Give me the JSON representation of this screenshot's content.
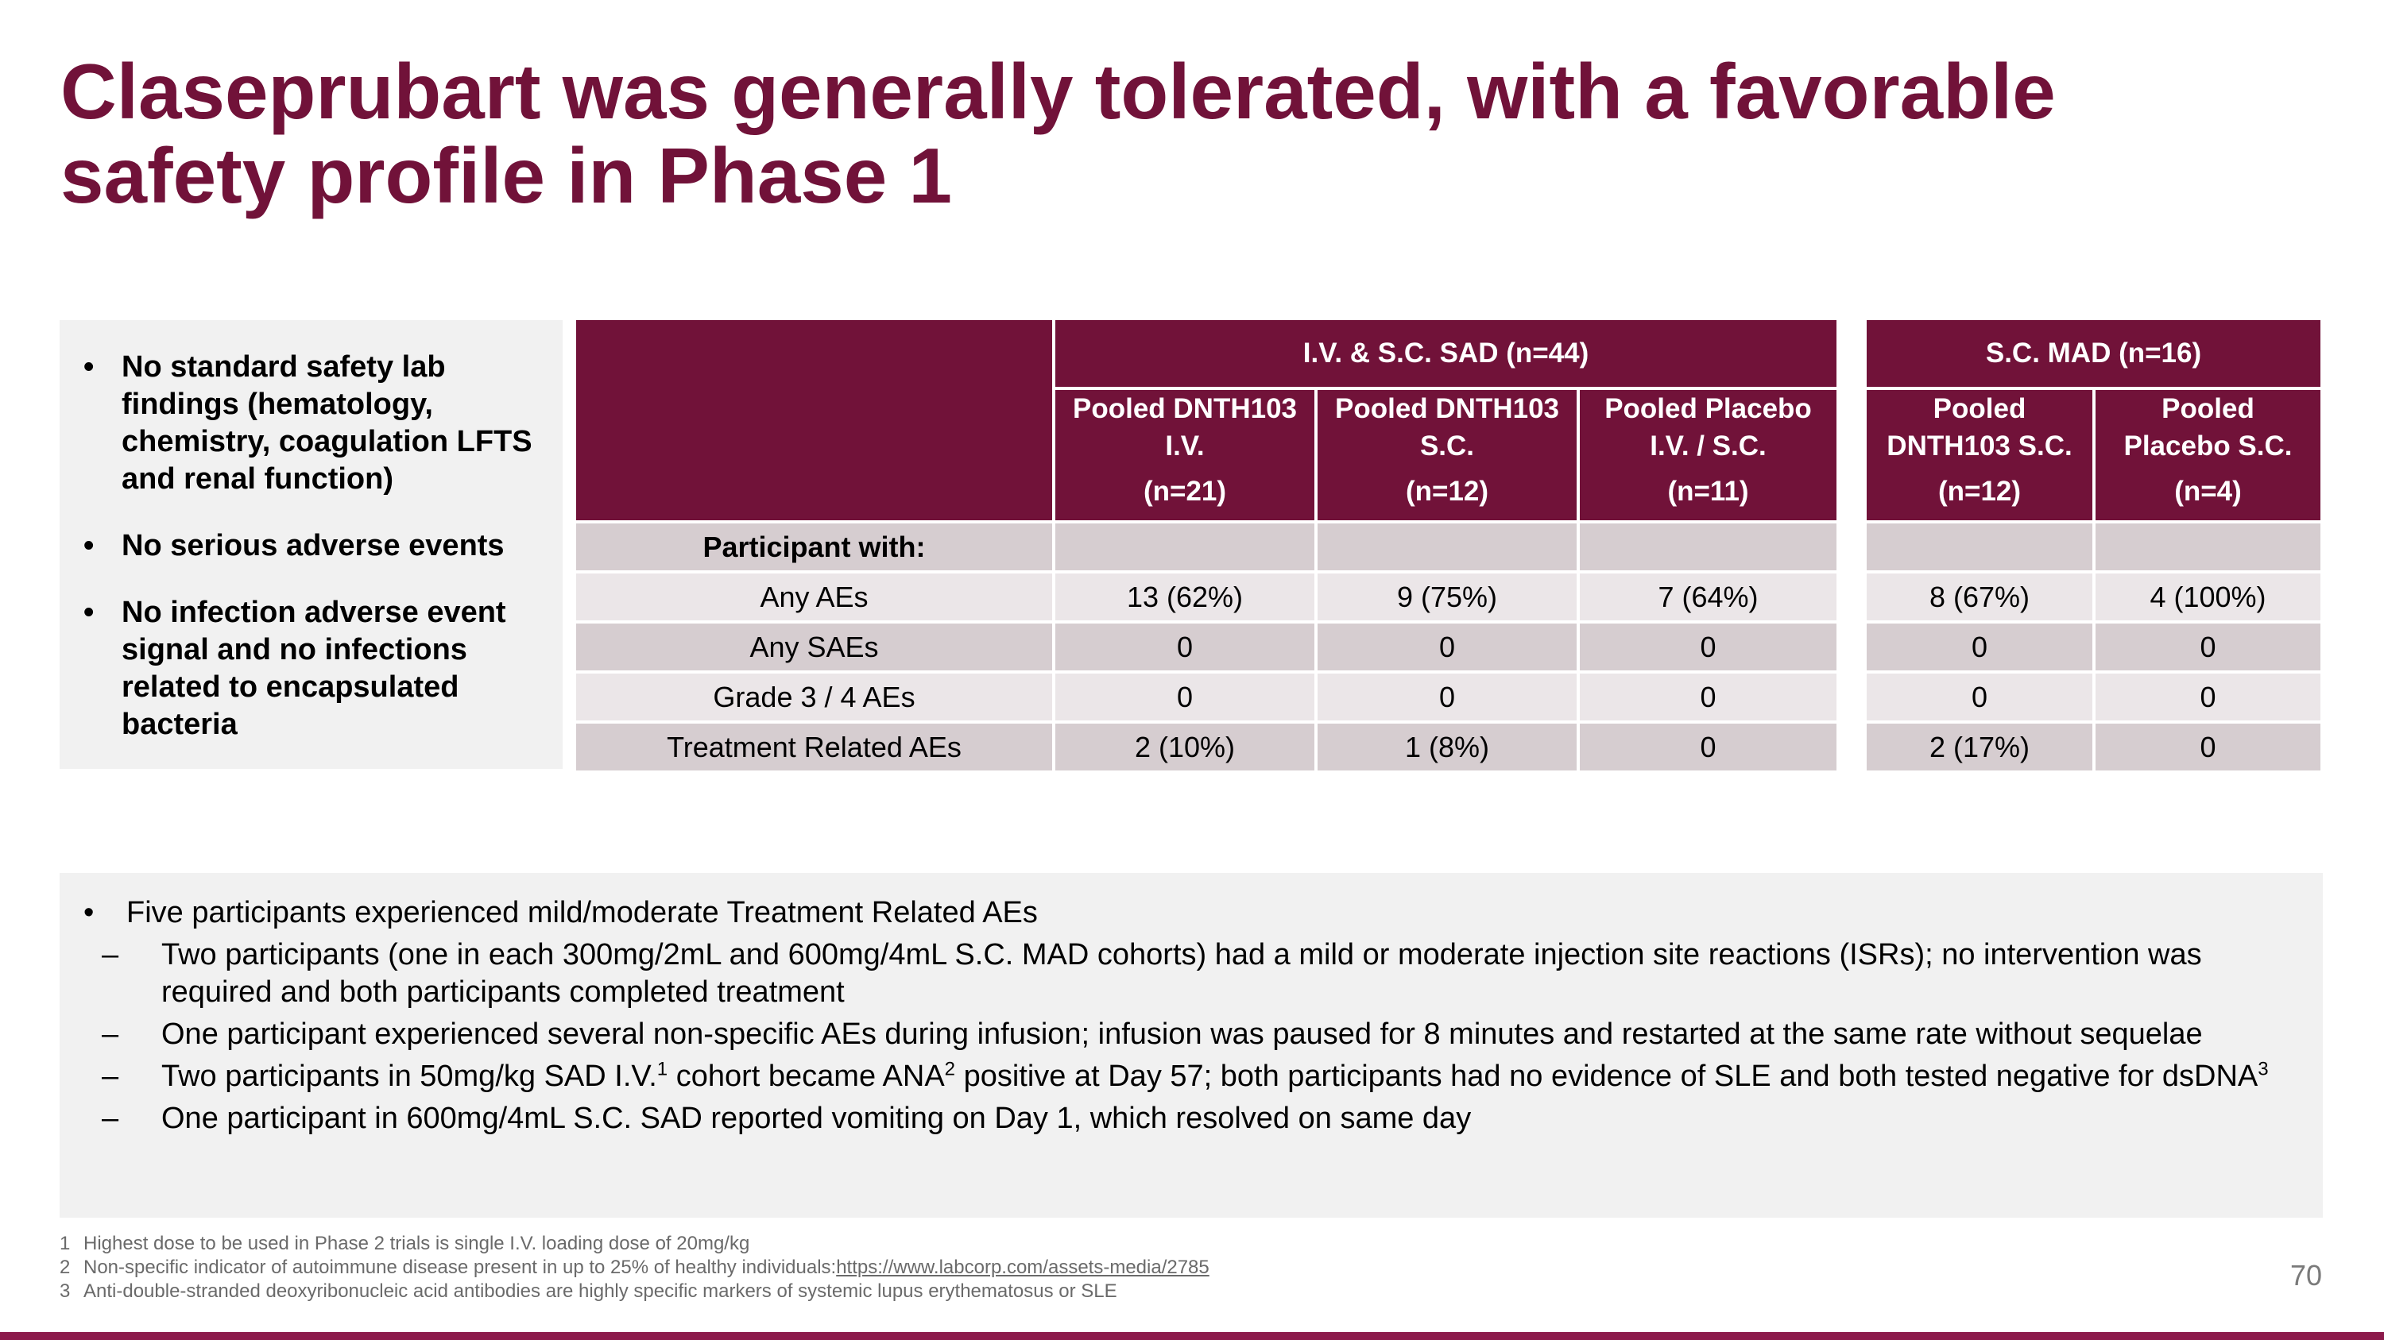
{
  "title": {
    "line1": "Claseprubart was generally  tolerated, with a favorable",
    "line2": "safety profile in Phase 1"
  },
  "left_bullets": [
    "No standard safety lab findings (hematology, chemistry, coagulation LFTS and renal function)",
    "No serious adverse events",
    "No infection adverse event signal and no infections related to encapsulated bacteria"
  ],
  "sad_table": {
    "group_header": "I.V. & S.C. SAD (n=44)",
    "columns": [
      {
        "name_line1": "Pooled DNTH103",
        "name_line2": "I.V.",
        "n": "(n=21)"
      },
      {
        "name_line1": "Pooled DNTH103",
        "name_line2": "S.C.",
        "n": "(n=12)"
      },
      {
        "name_line1": "Pooled Placebo",
        "name_line2": "I.V. / S.C.",
        "n": "(n=11)"
      }
    ]
  },
  "mad_table": {
    "group_header": "S.C. MAD (n=16)",
    "columns": [
      {
        "name_line1": "Pooled",
        "name_line2": "DNTH103 S.C.",
        "n": "(n=12)"
      },
      {
        "name_line1": "Pooled",
        "name_line2": "Placebo S.C.",
        "n": "(n=4)"
      }
    ]
  },
  "rows": [
    {
      "label": "Participant with:",
      "sad": [
        "",
        "",
        ""
      ],
      "mad": [
        "",
        ""
      ]
    },
    {
      "label": "Any AEs",
      "sad": [
        "13 (62%)",
        "9 (75%)",
        "7 (64%)"
      ],
      "mad": [
        "8 (67%)",
        "4 (100%)"
      ]
    },
    {
      "label": "Any SAEs",
      "sad": [
        "0",
        "0",
        "0"
      ],
      "mad": [
        "0",
        "0"
      ]
    },
    {
      "label": "Grade 3 / 4 AEs",
      "sad": [
        "0",
        "0",
        "0"
      ],
      "mad": [
        "0",
        "0"
      ]
    },
    {
      "label": "Treatment Related AEs",
      "sad": [
        "2 (10%)",
        "1 (8%)",
        "0"
      ],
      "mad": [
        "2 (17%)",
        "0"
      ]
    }
  ],
  "bottom": {
    "main_bullet": "Five participants experienced mild/moderate Treatment Related AEs",
    "sub1": "Two participants (one in each 300mg/2mL and 600mg/4mL S.C. MAD cohorts) had a mild or moderate injection site reactions (ISRs); no intervention was required and both participants completed treatment",
    "sub2": "One participant experienced several non-specific AEs during infusion; infusion was paused for 8 minutes and restarted at the same rate without sequelae",
    "sub3_a": "Two participants in 50mg/kg SAD I.V.",
    "sub3_sup1": "1",
    "sub3_b": " cohort became ANA",
    "sub3_sup2": "2",
    "sub3_c": " positive at Day 57; both participants had no evidence of SLE and both tested negative for dsDNA",
    "sub3_sup3": "3",
    "sub4": "One participant in 600mg/4mL S.C. SAD reported vomiting on Day 1, which resolved on same day",
    "dash": "–",
    "bullet": "•"
  },
  "footnotes": [
    {
      "num": "1",
      "text": "Highest dose to be used in Phase 2 trials is single I.V. loading dose of 20mg/kg",
      "link": ""
    },
    {
      "num": "2",
      "text": "Non-specific indicator of autoimmune disease present in up to 25% of healthy individuals:",
      "link": "https://www.labcorp.com/assets-media/2785"
    },
    {
      "num": "3",
      "text": "Anti-double-stranded deoxyribonucleic acid antibodies are highly specific markers of systemic lupus erythematosus or SLE",
      "link": ""
    }
  ],
  "page_number": "70",
  "colors": {
    "brand": "#711239",
    "row_odd": "#d6cdd0",
    "row_even": "#ebe6e8",
    "box_bg": "#f1f1f1"
  }
}
